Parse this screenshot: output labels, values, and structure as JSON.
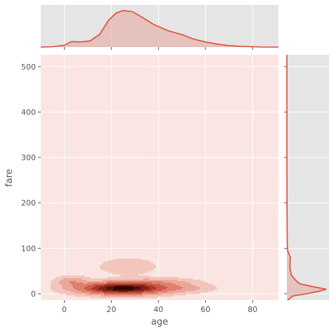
{
  "chart_data": {
    "type": "jointplot-kde",
    "xlabel": "age",
    "ylabel": "fare",
    "xlim": [
      -10,
      91
    ],
    "ylim": [
      -14,
      526
    ],
    "x_ticks": [
      0,
      20,
      40,
      60,
      80
    ],
    "y_ticks": [
      0,
      100,
      200,
      300,
      400,
      500
    ],
    "grid": true,
    "colors": {
      "background": "#e5e5e5",
      "grid": "#ffffff",
      "kde_base": "#fbe5e2",
      "line": "#e24a33",
      "fill": "#e6b3ab"
    },
    "marginal_x_density": [
      {
        "x": -10,
        "y": 0.0
      },
      {
        "x": -5,
        "y": 0.01
      },
      {
        "x": 0,
        "y": 0.05
      },
      {
        "x": 3,
        "y": 0.15
      },
      {
        "x": 7,
        "y": 0.14
      },
      {
        "x": 11,
        "y": 0.17
      },
      {
        "x": 15,
        "y": 0.35
      },
      {
        "x": 19,
        "y": 0.75
      },
      {
        "x": 22,
        "y": 0.93
      },
      {
        "x": 25,
        "y": 1.0
      },
      {
        "x": 29,
        "y": 0.97
      },
      {
        "x": 33,
        "y": 0.82
      },
      {
        "x": 38,
        "y": 0.62
      },
      {
        "x": 44,
        "y": 0.45
      },
      {
        "x": 50,
        "y": 0.34
      },
      {
        "x": 55,
        "y": 0.22
      },
      {
        "x": 60,
        "y": 0.14
      },
      {
        "x": 65,
        "y": 0.08
      },
      {
        "x": 70,
        "y": 0.04
      },
      {
        "x": 75,
        "y": 0.02
      },
      {
        "x": 80,
        "y": 0.01
      },
      {
        "x": 85,
        "y": 0.0
      },
      {
        "x": 91,
        "y": 0.0
      }
    ],
    "marginal_y_density": [
      {
        "fare": -14,
        "d": 0.02
      },
      {
        "fare": -5,
        "d": 0.15
      },
      {
        "fare": 0,
        "d": 0.5
      },
      {
        "fare": 5,
        "d": 0.8
      },
      {
        "fare": 10,
        "d": 1.0
      },
      {
        "fare": 15,
        "d": 0.7
      },
      {
        "fare": 22,
        "d": 0.32
      },
      {
        "fare": 30,
        "d": 0.22
      },
      {
        "fare": 40,
        "d": 0.12
      },
      {
        "fare": 55,
        "d": 0.08
      },
      {
        "fare": 70,
        "d": 0.08
      },
      {
        "fare": 80,
        "d": 0.09
      },
      {
        "fare": 95,
        "d": 0.02
      },
      {
        "fare": 110,
        "d": 0.01
      },
      {
        "fare": 150,
        "d": 0.005
      },
      {
        "fare": 200,
        "d": 0.003
      },
      {
        "fare": 250,
        "d": 0.002
      },
      {
        "fare": 300,
        "d": 0.0
      },
      {
        "fare": 526,
        "d": 0.0
      }
    ],
    "kde_clusters": [
      {
        "x": 25,
        "fare": 12,
        "sx": 11,
        "sf": 8,
        "w": 1.0
      },
      {
        "x": 40,
        "fare": 25,
        "sx": 10,
        "sf": 6,
        "w": 0.12
      },
      {
        "x": 3,
        "fare": 27,
        "sx": 4,
        "sf": 7,
        "w": 0.16
      },
      {
        "x": 50,
        "fare": 12,
        "sx": 8,
        "sf": 6,
        "w": 0.1
      },
      {
        "x": 27,
        "fare": 60,
        "sx": 10,
        "sf": 15,
        "w": 0.04
      }
    ]
  }
}
